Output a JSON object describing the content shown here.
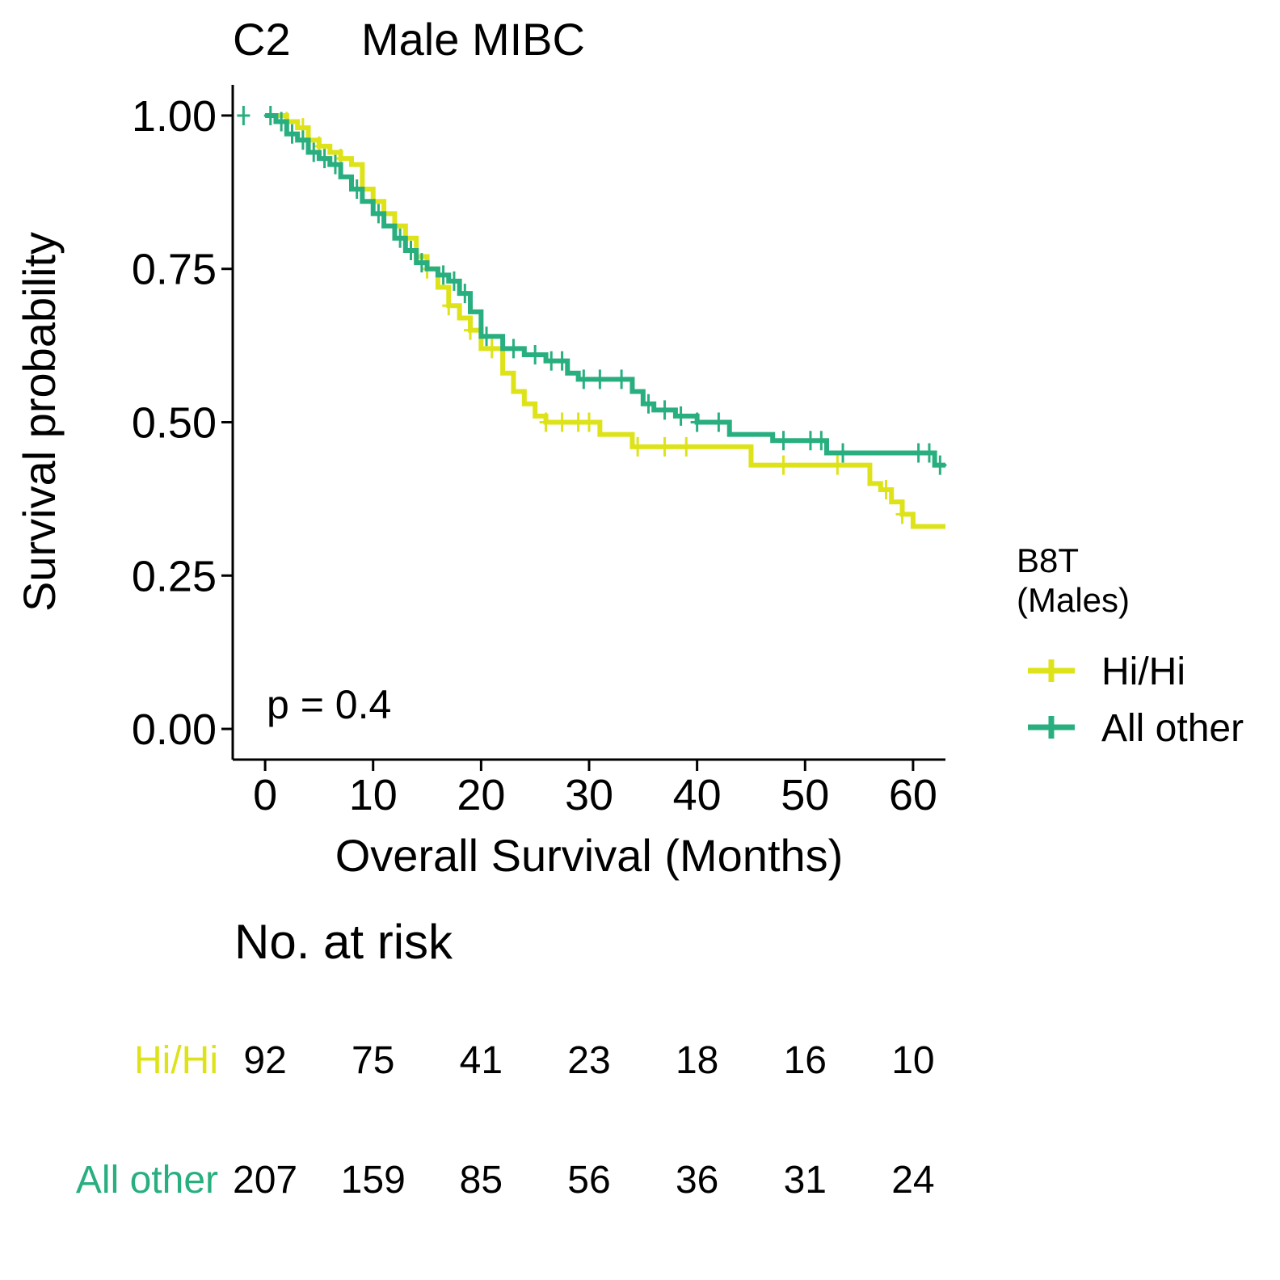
{
  "chart_data": {
    "type": "line",
    "panel_label": "C2",
    "title": "Male MIBC",
    "xlabel": "Overall Survival (Months)",
    "ylabel": "Survival probability",
    "xlim": [
      -3,
      63
    ],
    "ylim": [
      -0.05,
      1.05
    ],
    "x_ticks": [
      0,
      10,
      20,
      30,
      40,
      50,
      60
    ],
    "x_tick_labels": [
      "0",
      "10",
      "20",
      "30",
      "40",
      "50",
      "60"
    ],
    "y_ticks": [
      0,
      0.25,
      0.5,
      0.75,
      1.0
    ],
    "y_tick_labels": [
      "0.00",
      "0.25",
      "0.50",
      "0.75",
      "1.00"
    ],
    "grid": false,
    "annotation": "p = 0.4",
    "legend": {
      "title_line1": "B8T",
      "title_line2": "(Males)",
      "placement": "right"
    },
    "series": [
      {
        "name": "Hi/Hi",
        "color": "#dde318",
        "x": [
          0,
          2,
          3,
          4,
          5,
          6,
          7,
          8,
          9,
          10,
          11,
          12,
          13,
          14,
          15,
          16,
          17,
          18,
          19,
          20,
          22,
          23,
          24,
          25,
          26,
          27,
          28,
          30,
          31,
          33,
          34,
          36,
          40,
          45,
          47,
          50,
          52,
          54,
          55,
          56,
          57,
          58,
          59,
          60,
          63
        ],
        "y": [
          1.0,
          0.99,
          0.98,
          0.96,
          0.95,
          0.94,
          0.93,
          0.92,
          0.88,
          0.86,
          0.84,
          0.82,
          0.8,
          0.77,
          0.75,
          0.72,
          0.69,
          0.67,
          0.65,
          0.62,
          0.58,
          0.55,
          0.53,
          0.51,
          0.5,
          0.5,
          0.5,
          0.5,
          0.48,
          0.48,
          0.46,
          0.46,
          0.46,
          0.43,
          0.43,
          0.43,
          0.43,
          0.43,
          0.43,
          0.4,
          0.39,
          0.37,
          0.35,
          0.33,
          0.33
        ],
        "censor_x": [
          2,
          3.5,
          5,
          7,
          9,
          11,
          13,
          15,
          17,
          19,
          21,
          26,
          27.5,
          29,
          30,
          34.5,
          37,
          39,
          48,
          53,
          57.5,
          59
        ]
      },
      {
        "name": "All other",
        "color": "#29af7f",
        "x": [
          0,
          1,
          2,
          3,
          4,
          5,
          6,
          7,
          8,
          9,
          10,
          11,
          12,
          13,
          14,
          15,
          16,
          17,
          18,
          19,
          20,
          22,
          24,
          26,
          28,
          29,
          32,
          34,
          35,
          36,
          38,
          40,
          43,
          47,
          51,
          52,
          55,
          60,
          62,
          63
        ],
        "y": [
          1.0,
          0.99,
          0.97,
          0.96,
          0.94,
          0.93,
          0.92,
          0.9,
          0.88,
          0.86,
          0.84,
          0.82,
          0.8,
          0.78,
          0.76,
          0.75,
          0.74,
          0.73,
          0.71,
          0.68,
          0.64,
          0.62,
          0.61,
          0.6,
          0.58,
          0.57,
          0.57,
          0.55,
          0.53,
          0.52,
          0.51,
          0.5,
          0.48,
          0.47,
          0.47,
          0.45,
          0.45,
          0.45,
          0.43,
          0.43
        ],
        "censor_x": [
          -2,
          0.5,
          1.5,
          2.5,
          3.5,
          4.5,
          5.5,
          6.5,
          8.5,
          10.5,
          12.5,
          13.5,
          14.5,
          16.5,
          17.5,
          18.5,
          20.5,
          23,
          25,
          26.5,
          27.5,
          29.5,
          31,
          33,
          35.5,
          37,
          38.5,
          40,
          42,
          48,
          50.5,
          51.5,
          53.5,
          60.5,
          61.5,
          62.5
        ]
      }
    ],
    "risk_table": {
      "title": "No. at risk",
      "times": [
        0,
        10,
        20,
        30,
        40,
        50,
        60
      ],
      "rows": [
        {
          "label": "Hi/Hi",
          "color": "#dde318",
          "values": [
            "92",
            "75",
            "41",
            "23",
            "18",
            "16",
            "10"
          ]
        },
        {
          "label": "All other",
          "color": "#29af7f",
          "values": [
            "207",
            "159",
            "85",
            "56",
            "36",
            "31",
            "24"
          ]
        }
      ]
    }
  }
}
